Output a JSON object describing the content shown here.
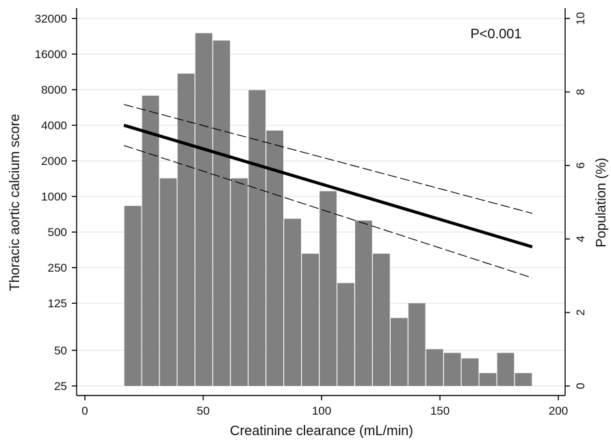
{
  "chart_data": {
    "type": "bar",
    "title": "",
    "xlabel": "Creatinine clearance (mL/min)",
    "ylabel_left": "Thoracic aortic calcium score",
    "ylabel_right": "Population (%)",
    "annotation": "P<0.001",
    "grid": true,
    "x_axis": {
      "range": [
        0,
        200
      ],
      "ticks": [
        0,
        50,
        100,
        150,
        200
      ]
    },
    "y_left": {
      "scale": "log",
      "ticks": [
        25,
        50,
        125,
        250,
        500,
        1000,
        2000,
        4000,
        8000,
        16000,
        32000
      ]
    },
    "y_right": {
      "range": [
        0,
        10
      ],
      "ticks": [
        0,
        2,
        4,
        6,
        8,
        10
      ]
    },
    "bar_color": "#808080",
    "histogram": {
      "bin_width": 7.5,
      "bin_starts": [
        16.5,
        24,
        31.5,
        39,
        46.5,
        54,
        61.5,
        69,
        76.5,
        84,
        91.5,
        99,
        106.5,
        114,
        121.5,
        129,
        136.5,
        144,
        151.5,
        159,
        166.5,
        174,
        181.5
      ],
      "values_percent": [
        4.9,
        7.9,
        5.65,
        8.5,
        9.6,
        9.4,
        5.65,
        8.05,
        6.95,
        4.55,
        3.6,
        5.3,
        2.8,
        4.5,
        3.6,
        1.85,
        2.25,
        1.0,
        0.9,
        0.75,
        0.35,
        0.9,
        0.35
      ]
    },
    "fit_line": {
      "x": [
        16.5,
        189
      ],
      "y": [
        4000,
        375
      ],
      "color": "#000000"
    },
    "ci_upper": {
      "x": [
        16.5,
        189
      ],
      "y": [
        6000,
        720
      ],
      "style": "dashed"
    },
    "ci_lower": {
      "x": [
        16.5,
        189
      ],
      "y": [
        2700,
        205
      ],
      "style": "dashed"
    }
  }
}
